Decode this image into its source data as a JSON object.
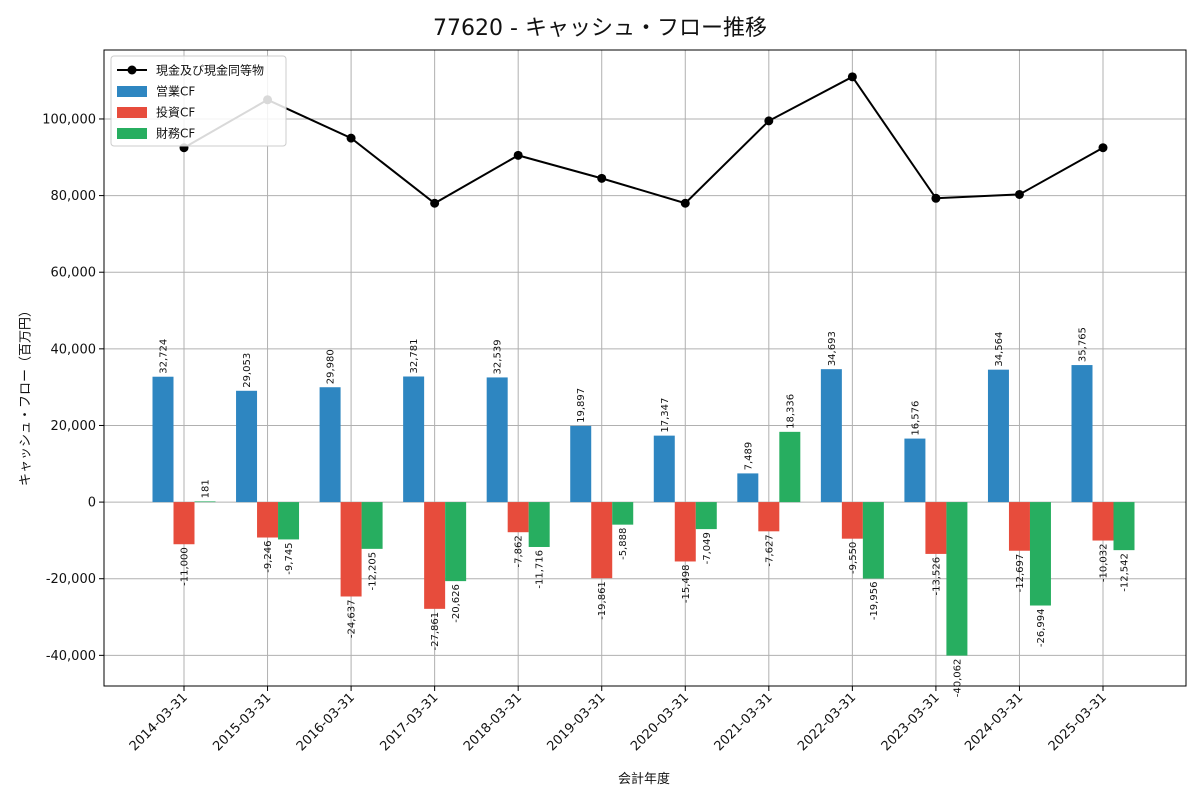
{
  "chart_data": {
    "type": "bar",
    "title": "77620 - キャッシュ・フロー推移",
    "xlabel": "会計年度",
    "ylabel": "キャッシュ・フロー（百万円）",
    "categories": [
      "2014-03-31",
      "2015-03-31",
      "2016-03-31",
      "2017-03-31",
      "2018-03-31",
      "2019-03-31",
      "2020-03-31",
      "2021-03-31",
      "2022-03-31",
      "2023-03-31",
      "2024-03-31",
      "2025-03-31"
    ],
    "series": [
      {
        "name": "営業CF",
        "kind": "bar",
        "color": "#2e86c1",
        "values": [
          32724,
          29053,
          29980,
          32781,
          32539,
          19897,
          17347,
          7489,
          34693,
          16576,
          34564,
          35765
        ]
      },
      {
        "name": "投資CF",
        "kind": "bar",
        "color": "#e74c3c",
        "values": [
          -11000,
          -9246,
          -24637,
          -27861,
          -7862,
          -19861,
          -15498,
          -7627,
          -9550,
          -13526,
          -12697,
          -10032
        ]
      },
      {
        "name": "財務CF",
        "kind": "bar",
        "color": "#27ae60",
        "values": [
          181,
          -9745,
          -12205,
          -20626,
          -11716,
          -5888,
          -7049,
          18336,
          -19956,
          -40062,
          -26994,
          -12542
        ]
      },
      {
        "name": "現金及び現金同等物",
        "kind": "line",
        "color": "#000000",
        "values": [
          92500,
          105000,
          95000,
          78000,
          90500,
          84500,
          78000,
          99500,
          111000,
          79300,
          80300,
          92500
        ]
      }
    ],
    "ylim": [
      -48000,
      118000
    ],
    "yticks": [
      -40000,
      -20000,
      0,
      20000,
      40000,
      60000,
      80000,
      100000
    ],
    "ytick_labels": [
      "-40,000",
      "-20,000",
      "0",
      "20,000",
      "40,000",
      "60,000",
      "80,000",
      "100,000"
    ],
    "grid": true,
    "legend_position": "top-left"
  }
}
